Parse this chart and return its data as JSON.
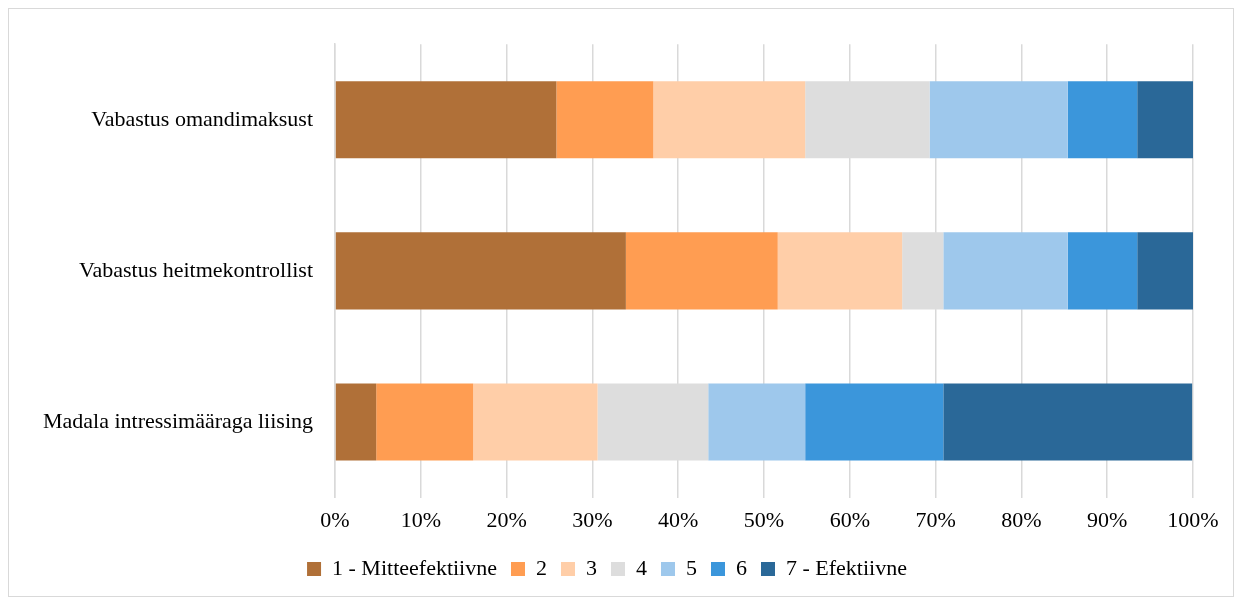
{
  "chart_data": {
    "type": "bar",
    "orientation": "horizontal",
    "stacked": true,
    "categories": [
      "Vabastus omandimaksust",
      "Vabastus heitmekontrollist",
      "Madala intressimääraga liising"
    ],
    "series": [
      {
        "name": "1 - Mitteefektiivne",
        "color": "#b07038",
        "values": [
          25.8,
          33.9,
          4.8
        ]
      },
      {
        "name": "2",
        "color": "#ff9d52",
        "values": [
          11.3,
          17.7,
          11.3
        ]
      },
      {
        "name": "3",
        "color": "#ffcea8",
        "values": [
          17.7,
          14.5,
          14.5
        ]
      },
      {
        "name": "4",
        "color": "#dddddd",
        "values": [
          14.5,
          4.8,
          12.9
        ]
      },
      {
        "name": "5",
        "color": "#9ec8ec",
        "values": [
          16.1,
          14.5,
          11.3
        ]
      },
      {
        "name": "6",
        "color": "#3b96db",
        "values": [
          8.1,
          8.1,
          16.1
        ]
      },
      {
        "name": "7 - Efektiivne",
        "color": "#2a6898",
        "values": [
          6.5,
          6.5,
          29.0
        ]
      }
    ],
    "xlim": [
      0,
      100
    ],
    "xticks": [
      {
        "value": 0,
        "label": "0%"
      },
      {
        "value": 10,
        "label": "10%"
      },
      {
        "value": 20,
        "label": "20%"
      },
      {
        "value": 30,
        "label": "30%"
      },
      {
        "value": 40,
        "label": "40%"
      },
      {
        "value": 50,
        "label": "50%"
      },
      {
        "value": 60,
        "label": "60%"
      },
      {
        "value": 70,
        "label": "70%"
      },
      {
        "value": 80,
        "label": "80%"
      },
      {
        "value": 90,
        "label": "90%"
      },
      {
        "value": 100,
        "label": "100%"
      }
    ],
    "grid": "x",
    "legend": "bottom"
  }
}
